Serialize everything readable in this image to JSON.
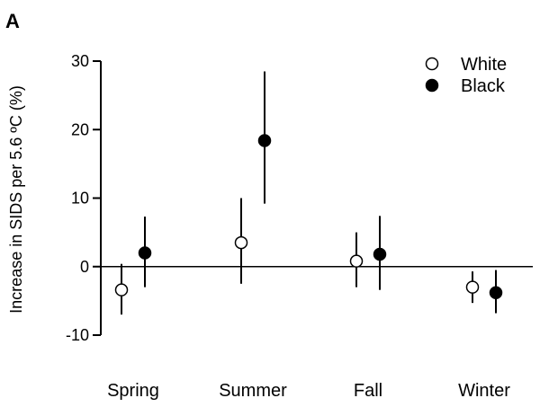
{
  "panel_label": "A",
  "chart_data": {
    "type": "scatter",
    "subtype": "dot-with-error-bars",
    "ylabel": "Increase in SIDS per 5.6 ºC (%)",
    "xlabel": "",
    "ylim": [
      -10,
      30
    ],
    "yticks": [
      -10,
      0,
      10,
      20,
      30
    ],
    "categories": [
      "Spring",
      "Summer",
      "Fall",
      "Winter"
    ],
    "reference_line": 0,
    "legend_position": "top-right",
    "series": [
      {
        "name": "White",
        "marker": "open-circle",
        "values": [
          -3.4,
          3.5,
          0.8,
          -3.0
        ],
        "lower": [
          -7.0,
          -2.5,
          -3.0,
          -5.3
        ],
        "upper": [
          0.4,
          10.0,
          5.0,
          -0.7
        ]
      },
      {
        "name": "Black",
        "marker": "filled-circle",
        "values": [
          2.0,
          18.4,
          1.8,
          -3.8
        ],
        "lower": [
          -3.0,
          9.2,
          -3.4,
          -6.8
        ],
        "upper": [
          7.3,
          28.5,
          7.4,
          -0.5
        ]
      }
    ]
  }
}
